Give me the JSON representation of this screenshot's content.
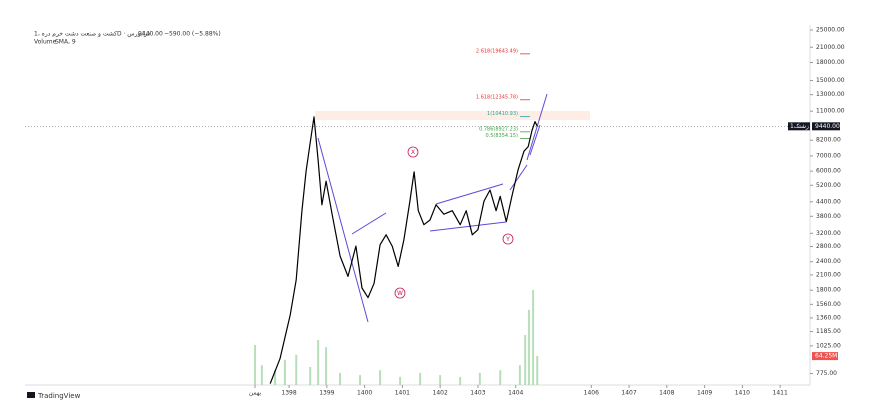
{
  "chart_data": {
    "type": "line",
    "title": "کشت و صنعت دشت خرم دره ،1D · فرابورس",
    "last": {
      "value": 9440,
      "label": "9440.00"
    },
    "change": "−590.00 (−5.88%)",
    "ticker": "زشتک1",
    "volume_title": "Volume",
    "volume_study": "SMA, 9",
    "brand": "TradingView",
    "log_scale": true,
    "xlim": [
      1391.01,
      1411.79
    ],
    "xticks": [
      {
        "value": 1397.1,
        "label": "بهمن"
      },
      1398,
      1399,
      1400,
      1401,
      1402,
      1403,
      1404,
      1406,
      1407,
      1408,
      1409,
      1410,
      1411
    ],
    "ylim": [
      690,
      26300
    ],
    "yticks": [
      {
        "value": 25000,
        "label": "25000.00"
      },
      {
        "value": 21000,
        "label": "21000.00"
      },
      {
        "value": 18000,
        "label": "18000.00"
      },
      {
        "value": 15000,
        "label": "15000.00"
      },
      {
        "value": 13000,
        "label": "13000.00"
      },
      {
        "value": 11000,
        "label": "11000.00"
      },
      {
        "value": 8200,
        "label": "8200.00"
      },
      {
        "value": 7000,
        "label": "7000.00"
      },
      {
        "value": 6000,
        "label": "6000.00"
      },
      {
        "value": 5200,
        "label": "5200.00"
      },
      {
        "value": 4400,
        "label": "4400.00"
      },
      {
        "value": 3800,
        "label": "3800.00"
      },
      {
        "value": 3200,
        "label": "3200.00"
      },
      {
        "value": 2800,
        "label": "2800.00"
      },
      {
        "value": 2400,
        "label": "2400.00"
      },
      {
        "value": 2100,
        "label": "2100.00"
      },
      {
        "value": 1800,
        "label": "1800.00"
      },
      {
        "value": 1560,
        "label": "1560.00"
      },
      {
        "value": 1360,
        "label": "1360.00"
      },
      {
        "value": 1185,
        "label": "1185.00"
      },
      {
        "value": 1025,
        "label": "1025.00"
      },
      {
        "value": 775,
        "label": "775.00"
      }
    ],
    "series": [
      {
        "name": "Price",
        "color": "#000000",
        "x": [
          1397.5,
          1397.76,
          1398.03,
          1398.19,
          1398.34,
          1398.45,
          1398.56,
          1398.66,
          1398.77,
          1398.87,
          1398.98,
          1399.14,
          1399.35,
          1399.56,
          1399.77,
          1399.93,
          1400.09,
          1400.25,
          1400.41,
          1400.57,
          1400.73,
          1400.89,
          1401.04,
          1401.2,
          1401.31,
          1401.42,
          1401.57,
          1401.73,
          1401.89,
          1402.1,
          1402.32,
          1402.53,
          1402.69,
          1402.85,
          1403.0,
          1403.16,
          1403.32,
          1403.48,
          1403.59,
          1403.75,
          1403.9,
          1404.06,
          1404.22,
          1404.33,
          1404.43,
          1404.51,
          1404.57
        ],
        "values": [
          700,
          900,
          1400,
          2000,
          4000,
          6000,
          8000,
          10380,
          6720,
          4270,
          5420,
          3880,
          2540,
          2070,
          2810,
          1840,
          1670,
          1930,
          2850,
          3150,
          2810,
          2290,
          3000,
          4430,
          5960,
          4020,
          3490,
          3660,
          4270,
          3880,
          4020,
          3490,
          4020,
          3150,
          3320,
          4430,
          4960,
          4020,
          4650,
          3600,
          4650,
          6060,
          7340,
          7690,
          9050,
          9900,
          9440
        ]
      }
    ],
    "volume": {
      "color": "#a5d6a7",
      "x": [
        1397.1,
        1397.28,
        1397.63,
        1397.89,
        1398.19,
        1398.56,
        1398.77,
        1398.98,
        1399.35,
        1399.88,
        1400.41,
        1400.94,
        1401.47,
        1402.0,
        1402.53,
        1403.05,
        1403.59,
        1404.11,
        1404.25,
        1404.35,
        1404.46,
        1404.57
      ],
      "values": [
        89000000,
        44000000,
        33000000,
        56000000,
        67000000,
        40000000,
        100000000,
        84000000,
        27000000,
        22000000,
        33000000,
        18000000,
        27000000,
        22000000,
        18000000,
        27000000,
        33000000,
        44000000,
        111000000,
        167000000,
        211000000,
        64250000
      ],
      "value_labels": [
        null,
        null,
        null,
        null,
        null,
        null,
        null,
        null,
        null,
        null,
        null,
        null,
        null,
        null,
        null,
        null,
        null,
        null,
        null,
        null,
        null,
        "64.25M"
      ],
      "ylim": [
        0,
        300000000
      ]
    },
    "fib_levels": [
      {
        "label": "2.618(19643.49)",
        "value": 19643.49,
        "color": "#e53935"
      },
      {
        "label": "1.618(12345.78)",
        "value": 12345.78,
        "color": "#e53935"
      },
      {
        "label": "1(10410.93)",
        "value": 10410.93,
        "color": "#26a69a"
      },
      {
        "label": "0.786(8927.23)",
        "value": 8927.23,
        "color": "#43a047"
      },
      {
        "label": "0.5(8354.15)",
        "value": 8354.15,
        "color": "#43a047"
      }
    ],
    "waves": [
      "X",
      "W",
      "Y"
    ]
  }
}
